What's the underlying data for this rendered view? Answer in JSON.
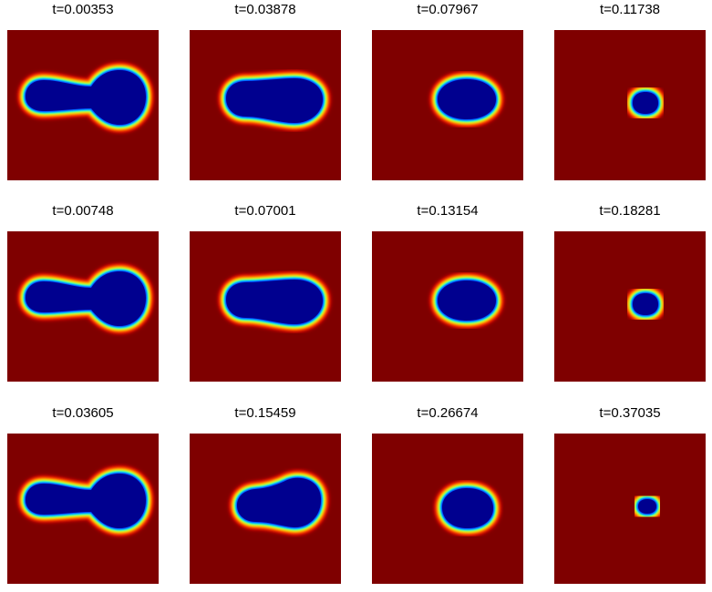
{
  "colors": {
    "background_field": "#7f0000",
    "interior": "#00008f",
    "colormap": "jet"
  },
  "figure": {
    "rows": [
      {
        "panels": [
          {
            "title": "t=0.00353",
            "shape": "dumbbell"
          },
          {
            "title": "t=0.03878",
            "shape": "pear"
          },
          {
            "title": "t=0.07967",
            "shape": "ellipse-medium"
          },
          {
            "title": "t=0.11738",
            "shape": "dot-small"
          }
        ]
      },
      {
        "panels": [
          {
            "title": "t=0.00748",
            "shape": "dumbbell"
          },
          {
            "title": "t=0.07001",
            "shape": "pear"
          },
          {
            "title": "t=0.13154",
            "shape": "ellipse-medium"
          },
          {
            "title": "t=0.18281",
            "shape": "dot-small"
          }
        ]
      },
      {
        "panels": [
          {
            "title": "t=0.03605",
            "shape": "dumbbell"
          },
          {
            "title": "t=0.15459",
            "shape": "pear-rough"
          },
          {
            "title": "t=0.26674",
            "shape": "ellipse-rough"
          },
          {
            "title": "t=0.37035",
            "shape": "dot-tiny"
          }
        ]
      }
    ]
  }
}
